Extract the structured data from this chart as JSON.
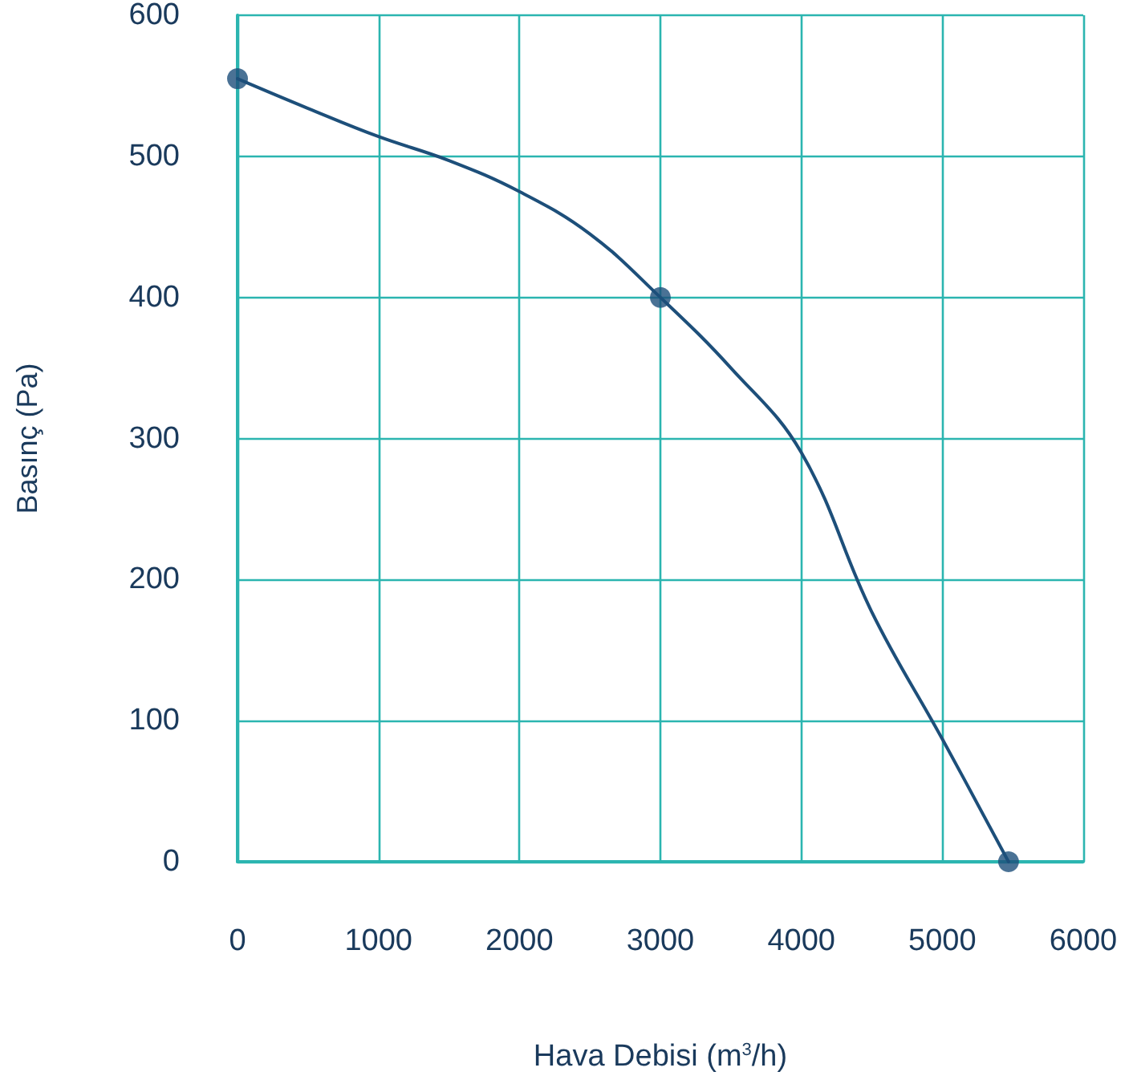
{
  "chart_data": {
    "type": "line",
    "xlabel": "Hava Debisi (m$^{3}$/h)",
    "ylabel": "Basınç (Pa)",
    "series": [
      {
        "color": "#1d4f7a",
        "marker": "none",
        "x": [
          0,
          500,
          1000,
          1500,
          2000,
          2500,
          3000,
          3500,
          4000,
          4500,
          5000,
          5470
        ],
        "values": [
          555,
          534,
          514,
          497,
          475,
          445,
          400,
          350,
          290,
          177,
          87,
          0
        ]
      },
      {
        "type": "scatter",
        "color": "#1d4f7a",
        "marker": "circle",
        "x": [
          0,
          3000,
          5470
        ],
        "values": [
          555,
          400,
          0
        ]
      }
    ],
    "xlim": [
      0,
      6000
    ],
    "xticks": [
      0,
      1000,
      2000,
      3000,
      4000,
      5000,
      6000
    ],
    "ylim": [
      0,
      600
    ],
    "yticks": [
      0,
      100,
      200,
      300,
      400,
      500,
      600
    ],
    "grid": true
  }
}
